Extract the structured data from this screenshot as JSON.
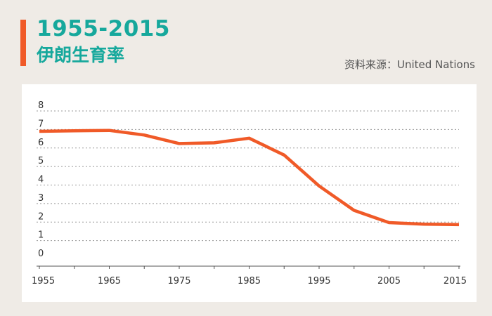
{
  "header": {
    "title": "1955-2015",
    "subtitle": "伊朗生育率",
    "source": "资料来源：United Nations"
  },
  "colors": {
    "accent": "#f05a28",
    "title": "#16a89c",
    "line": "#f05a28",
    "grid": "#999999",
    "text": "#333333"
  },
  "chart_data": {
    "type": "line",
    "title": "1955-2015 伊朗生育率",
    "xlabel": "",
    "ylabel": "",
    "xlim": [
      1955,
      2015
    ],
    "ylim": [
      0,
      8
    ],
    "x_ticks": [
      1955,
      1965,
      1975,
      1985,
      1995,
      2005,
      2015
    ],
    "y_ticks": [
      0,
      1,
      2,
      3,
      4,
      5,
      6,
      7,
      8
    ],
    "grid": true,
    "series": [
      {
        "x": [
          1955,
          1960,
          1965,
          1970,
          1975,
          1980,
          1985,
          1990,
          1995,
          2000,
          2005,
          2010,
          2015
        ],
        "values": [
          6.9,
          6.93,
          6.95,
          6.7,
          6.24,
          6.28,
          6.53,
          5.62,
          3.95,
          2.63,
          1.97,
          1.89,
          1.86
        ]
      }
    ]
  }
}
